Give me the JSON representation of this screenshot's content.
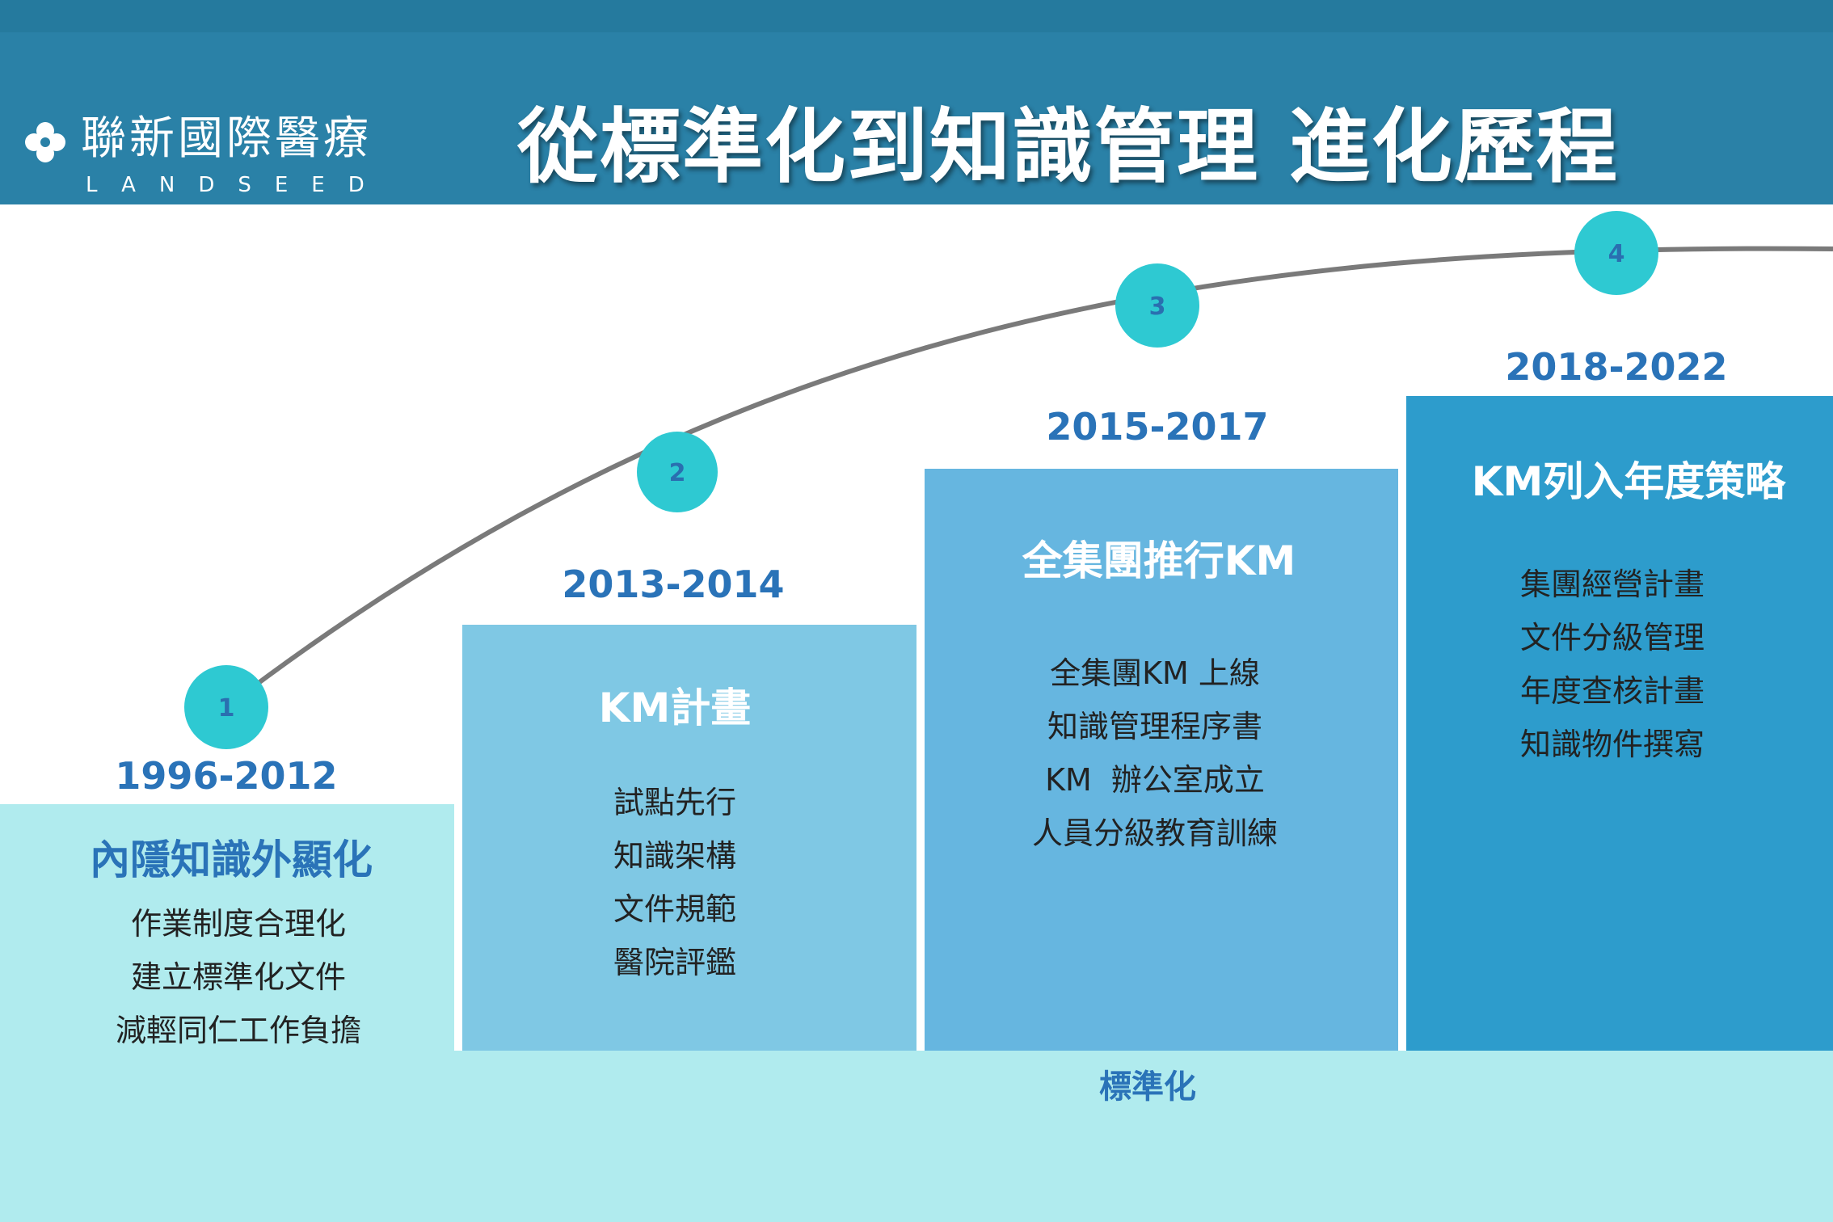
{
  "header": {
    "logo_name": "聯新國際醫療",
    "logo_en": "LANDSEED",
    "title": "從標準化到知識管理 進化歷程"
  },
  "colors": {
    "header": "#2a81a7",
    "marker": "#2ec9d2",
    "curve": "#7a7a7a",
    "box_1": "#b0ebee",
    "box_2": "#7fc8e4",
    "box_3": "#66b6e0",
    "box_4": "#2d9ccc",
    "accent_text": "#2a73b8"
  },
  "stages": [
    {
      "number": "1",
      "period": "1996-2012",
      "title": "內隱知識外顯化",
      "items": [
        "作業制度合理化",
        "建立標準化文件",
        "減輕同仁工作負擔"
      ]
    },
    {
      "number": "2",
      "period": "2013-2014",
      "title": "KM計畫",
      "items": [
        "試點先行",
        "知識架構",
        "文件規範",
        "醫院評鑑"
      ]
    },
    {
      "number": "3",
      "period": "2015-2017",
      "title": "全集團推行KM",
      "items": [
        "全集團KM 上線",
        "知識管理程序書",
        "KM  辦公室成立",
        "人員分級教育訓練"
      ]
    },
    {
      "number": "4",
      "period": "2018-2022",
      "title": "KM列入年度策略",
      "items": [
        "集團經營計畫",
        "文件分級管理",
        "年度查核計畫",
        "知識物件撰寫"
      ]
    }
  ],
  "footer_label": "標準化"
}
